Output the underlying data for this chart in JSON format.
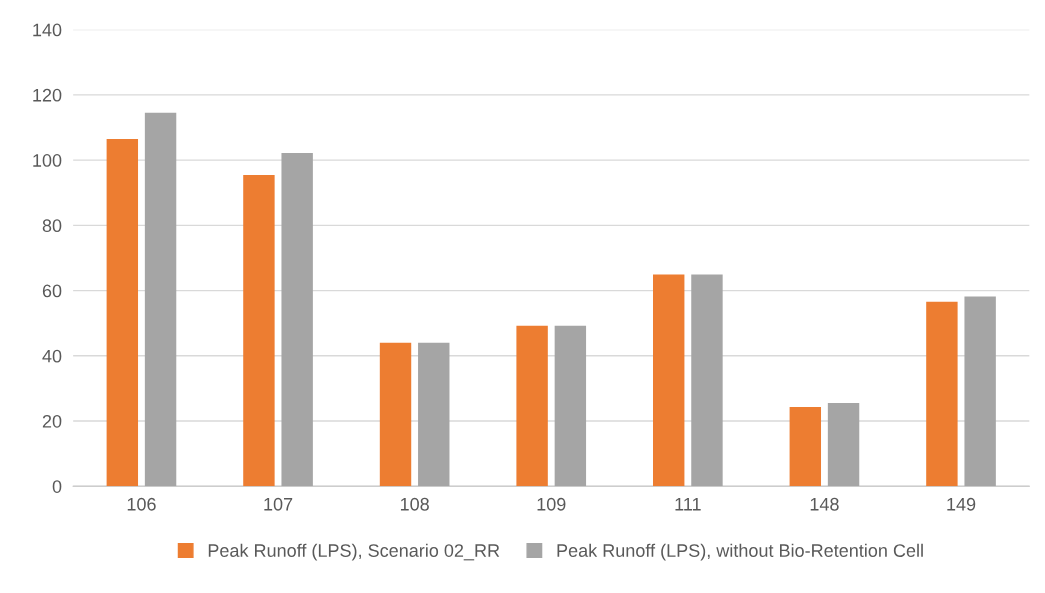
{
  "chart_data": {
    "type": "bar",
    "categories": [
      "106",
      "107",
      "108",
      "109",
      "111",
      "148",
      "149"
    ],
    "series": [
      {
        "name": "Peak Runoff (LPS), Scenario 02_RR",
        "color": "#ed7d31",
        "values": [
          106.5,
          95.4,
          44,
          49.2,
          64.9,
          24.3,
          56.6
        ]
      },
      {
        "name": "Peak Runoff (LPS), without Bio-Retention Cell",
        "color": "#a5a5a5",
        "values": [
          114.5,
          102.2,
          44,
          49.2,
          64.9,
          25.5,
          58.2
        ]
      }
    ],
    "ylim": [
      0,
      140
    ],
    "yticks": [
      0,
      20,
      40,
      60,
      80,
      100,
      120,
      140
    ],
    "grid": "y",
    "legend": "bottom"
  }
}
